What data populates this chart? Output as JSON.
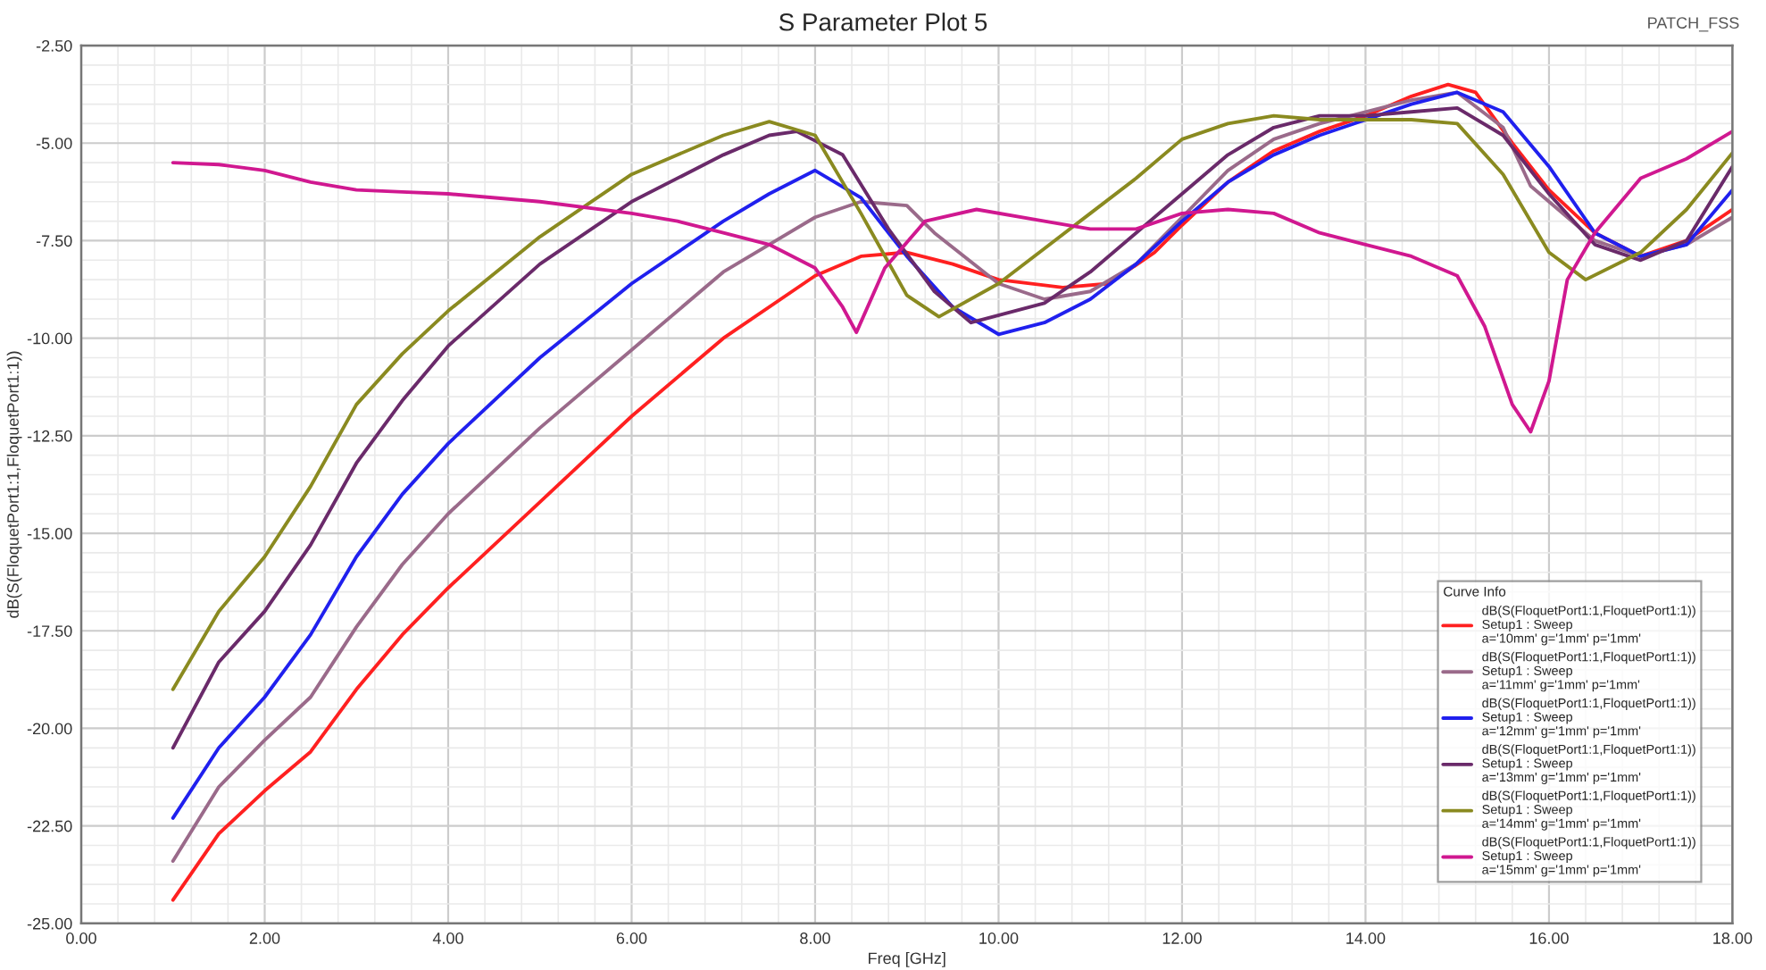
{
  "chart_data": {
    "type": "line",
    "title": "S Parameter Plot 5",
    "xlabel": "Freq [GHz]",
    "ylabel": "dB(S(FloquetPort1:1,FloquetPort1:1))",
    "legend_title": "Curve Info",
    "annotations": [
      "PATCH_FSS"
    ],
    "xlim": [
      0,
      18
    ],
    "ylim": [
      -25,
      -2.5
    ],
    "xticks": [
      {
        "value": 0,
        "label": "0.00"
      },
      {
        "value": 2,
        "label": "2.00"
      },
      {
        "value": 4,
        "label": "4.00"
      },
      {
        "value": 6,
        "label": "6.00"
      },
      {
        "value": 8,
        "label": "8.00"
      },
      {
        "value": 10,
        "label": "10.00"
      },
      {
        "value": 12,
        "label": "12.00"
      },
      {
        "value": 14,
        "label": "14.00"
      },
      {
        "value": 16,
        "label": "16.00"
      },
      {
        "value": 18,
        "label": "18.00"
      }
    ],
    "yticks": [
      {
        "value": -25,
        "label": "-25.00"
      },
      {
        "value": -22.5,
        "label": "-22.50"
      },
      {
        "value": -20,
        "label": "-20.00"
      },
      {
        "value": -17.5,
        "label": "-17.50"
      },
      {
        "value": -15,
        "label": "-15.00"
      },
      {
        "value": -12.5,
        "label": "-12.50"
      },
      {
        "value": -10,
        "label": "-10.00"
      },
      {
        "value": -7.5,
        "label": "-7.50"
      },
      {
        "value": -5,
        "label": "-5.00"
      },
      {
        "value": -2.5,
        "label": "-2.50"
      }
    ],
    "grid": true,
    "legend": "bottom right",
    "marker": "none",
    "line_style": "solid",
    "series": [
      {
        "name": "dB(S(FloquetPort1:1,FloquetPort1:1))\nSetup1 : Sweep\na='10mm' g='1mm' p='1mm'",
        "color": "#ff2020",
        "x": [
          1,
          1.5,
          2,
          2.5,
          3,
          3.5,
          4,
          5,
          6,
          7,
          8,
          8.5,
          9,
          9.5,
          10,
          10.7,
          11.2,
          11.7,
          12,
          12.5,
          13,
          13.5,
          14,
          14.5,
          14.9,
          15.2,
          15.6,
          16,
          16.5,
          17,
          17.5,
          18
        ],
        "values": [
          -24.4,
          -22.7,
          -21.6,
          -20.6,
          -19.0,
          -17.6,
          -16.4,
          -14.2,
          -12.0,
          -10.0,
          -8.4,
          -7.9,
          -7.8,
          -8.1,
          -8.5,
          -8.7,
          -8.6,
          -7.8,
          -7.1,
          -6.0,
          -5.2,
          -4.7,
          -4.3,
          -3.8,
          -3.5,
          -3.7,
          -5.0,
          -6.2,
          -7.3,
          -7.9,
          -7.5,
          -6.7
        ]
      },
      {
        "name": "dB(S(FloquetPort1:1,FloquetPort1:1))\nSetup1 : Sweep\na='11mm' g='1mm' p='1mm'",
        "color": "#9a6a8a",
        "x": [
          1,
          1.5,
          2,
          2.5,
          3,
          3.5,
          4,
          5,
          6,
          7,
          8,
          8.5,
          9,
          9.3,
          10,
          10.5,
          11,
          11.5,
          12,
          12.5,
          13,
          13.5,
          14,
          14.5,
          15,
          15.5,
          15.8,
          16.5,
          17,
          17.5,
          18
        ],
        "values": [
          -23.4,
          -21.5,
          -20.3,
          -19.2,
          -17.4,
          -15.8,
          -14.5,
          -12.3,
          -10.3,
          -8.3,
          -6.9,
          -6.5,
          -6.6,
          -7.3,
          -8.6,
          -9.0,
          -8.8,
          -8.1,
          -6.9,
          -5.7,
          -4.9,
          -4.5,
          -4.2,
          -3.9,
          -3.7,
          -4.6,
          -6.1,
          -7.5,
          -7.9,
          -7.6,
          -6.9
        ]
      },
      {
        "name": "dB(S(FloquetPort1:1,FloquetPort1:1))\nSetup1 : Sweep\na='12mm' g='1mm' p='1mm'",
        "color": "#2020ee",
        "x": [
          1,
          1.5,
          2,
          2.5,
          3,
          3.5,
          4,
          5,
          6,
          7,
          7.5,
          8,
          8.5,
          9,
          9.5,
          10,
          10.5,
          11,
          11.5,
          12,
          12.5,
          13,
          13.5,
          14,
          14.5,
          15,
          15.5,
          16,
          16.5,
          17,
          17.5,
          18
        ],
        "values": [
          -22.3,
          -20.5,
          -19.2,
          -17.6,
          -15.6,
          -14.0,
          -12.7,
          -10.5,
          -8.6,
          -7.0,
          -6.3,
          -5.7,
          -6.4,
          -7.9,
          -9.2,
          -9.9,
          -9.6,
          -9.0,
          -8.1,
          -7.0,
          -6.0,
          -5.3,
          -4.8,
          -4.4,
          -4.0,
          -3.7,
          -4.2,
          -5.6,
          -7.3,
          -7.9,
          -7.6,
          -6.2
        ]
      },
      {
        "name": "dB(S(FloquetPort1:1,FloquetPort1:1))\nSetup1 : Sweep\na='13mm' g='1mm' p='1mm'",
        "color": "#6a2a6a",
        "x": [
          1,
          1.5,
          2,
          2.5,
          3,
          3.5,
          4,
          5,
          6,
          7,
          7.5,
          7.8,
          8.3,
          8.8,
          9.3,
          9.7,
          10.5,
          11,
          11.5,
          12,
          12.5,
          13,
          13.5,
          14,
          14.5,
          15,
          15.5,
          16,
          16.5,
          17,
          17.5,
          18
        ],
        "values": [
          -20.5,
          -18.3,
          -17.0,
          -15.3,
          -13.2,
          -11.6,
          -10.2,
          -8.1,
          -6.5,
          -5.3,
          -4.8,
          -4.7,
          -5.3,
          -7.2,
          -8.8,
          -9.6,
          -9.1,
          -8.3,
          -7.3,
          -6.3,
          -5.3,
          -4.6,
          -4.3,
          -4.3,
          -4.2,
          -4.1,
          -4.8,
          -6.3,
          -7.6,
          -8.0,
          -7.5,
          -5.6
        ]
      },
      {
        "name": "dB(S(FloquetPort1:1,FloquetPort1:1))\nSetup1 : Sweep\na='14mm' g='1mm' p='1mm'",
        "color": "#8a8a20",
        "x": [
          1,
          1.5,
          2,
          2.5,
          3,
          3.5,
          4,
          5,
          6,
          7,
          7.5,
          8,
          8.5,
          9,
          9.35,
          10,
          10.5,
          11,
          11.5,
          12,
          12.5,
          13,
          13.5,
          14,
          14.5,
          15,
          15.5,
          16,
          16.4,
          17,
          17.5,
          18
        ],
        "values": [
          -19.0,
          -17.0,
          -15.6,
          -13.8,
          -11.7,
          -10.4,
          -9.3,
          -7.4,
          -5.8,
          -4.8,
          -4.45,
          -4.8,
          -6.8,
          -8.9,
          -9.45,
          -8.6,
          -7.7,
          -6.8,
          -5.9,
          -4.9,
          -4.5,
          -4.3,
          -4.4,
          -4.4,
          -4.4,
          -4.5,
          -5.8,
          -7.8,
          -8.5,
          -7.8,
          -6.7,
          -5.25
        ]
      },
      {
        "name": "dB(S(FloquetPort1:1,FloquetPort1:1))\nSetup1 : Sweep\na='15mm' g='1mm' p='1mm'",
        "color": "#d01890",
        "x": [
          1,
          1.5,
          2,
          2.5,
          3,
          3.5,
          4,
          5,
          6,
          6.5,
          7,
          7.5,
          8,
          8.3,
          8.45,
          8.76,
          9.2,
          9.76,
          10.5,
          11,
          11.5,
          12,
          12.5,
          13,
          13.5,
          14,
          14.5,
          15,
          15.3,
          15.6,
          15.8,
          16,
          16.2,
          16.5,
          17,
          17.5,
          18
        ],
        "values": [
          -5.5,
          -5.55,
          -5.7,
          -6.0,
          -6.2,
          -6.25,
          -6.3,
          -6.5,
          -6.8,
          -7.0,
          -7.3,
          -7.6,
          -8.2,
          -9.2,
          -9.85,
          -8.2,
          -7.0,
          -6.7,
          -7.0,
          -7.2,
          -7.2,
          -6.8,
          -6.7,
          -6.8,
          -7.3,
          -7.6,
          -7.9,
          -8.4,
          -9.7,
          -11.7,
          -12.4,
          -11.1,
          -8.5,
          -7.3,
          -5.9,
          -5.4,
          -4.7
        ]
      }
    ]
  }
}
